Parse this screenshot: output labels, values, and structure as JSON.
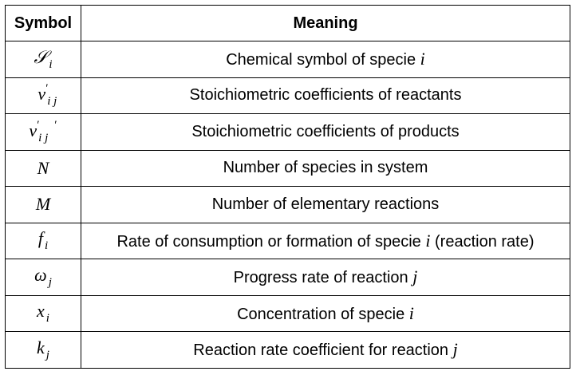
{
  "header": {
    "symbol": "Symbol",
    "meaning": "Meaning"
  },
  "rows": [
    {
      "symbol": {
        "base": "𝒮",
        "sub": "i",
        "sup": ""
      },
      "meaning": {
        "pre": "Chemical symbol of specie ",
        "var": "i",
        "post": ""
      }
    },
    {
      "symbol": {
        "base": "ν",
        "sub": "i j",
        "sup": "′"
      },
      "meaning": {
        "pre": "Stoichiometric coefficients of reactants",
        "var": "",
        "post": ""
      }
    },
    {
      "symbol": {
        "base": "ν",
        "sub": "i j",
        "sup": "′     ′"
      },
      "meaning": {
        "pre": "Stoichiometric coefficients of products",
        "var": "",
        "post": ""
      }
    },
    {
      "symbol": {
        "base": "N",
        "sub": "",
        "sup": ""
      },
      "meaning": {
        "pre": "Number of species in system",
        "var": "",
        "post": ""
      }
    },
    {
      "symbol": {
        "base": "M",
        "sub": "",
        "sup": ""
      },
      "meaning": {
        "pre": "Number of elementary reactions",
        "var": "",
        "post": ""
      }
    },
    {
      "symbol": {
        "base": "f",
        "sub": "i",
        "sup": ""
      },
      "meaning": {
        "pre": "Rate of consumption or formation of specie ",
        "var": "i",
        "post": " (reaction rate)"
      }
    },
    {
      "symbol": {
        "base": "ω",
        "sub": "j",
        "sup": ""
      },
      "meaning": {
        "pre": "Progress rate of reaction ",
        "var": "j",
        "post": ""
      }
    },
    {
      "symbol": {
        "base": "x",
        "sub": "i",
        "sup": ""
      },
      "meaning": {
        "pre": "Concentration of specie ",
        "var": "i",
        "post": ""
      }
    },
    {
      "symbol": {
        "base": "k",
        "sub": "j",
        "sup": ""
      },
      "meaning": {
        "pre": "Reaction rate coefficient for reaction ",
        "var": "j",
        "post": ""
      }
    }
  ]
}
